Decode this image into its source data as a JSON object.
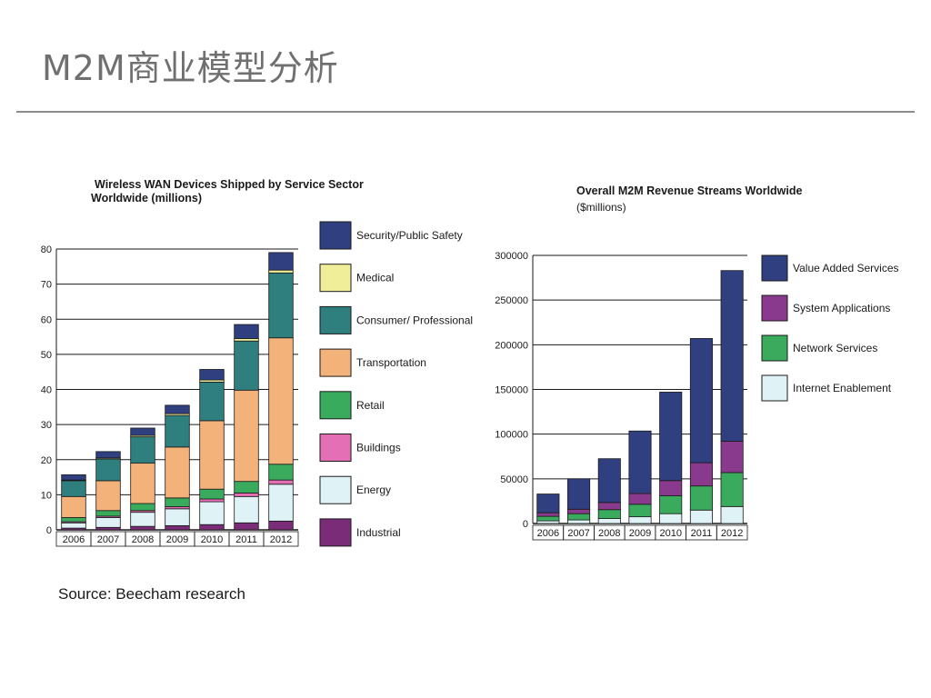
{
  "slide": {
    "title": "M2M商业模型分析",
    "source": "Source: Beecham research"
  },
  "chart_data": [
    {
      "type": "bar",
      "stacked": true,
      "title": "Wireless WAN Devices Shipped by Service Sector Worldwide (millions)",
      "title_lines": [
        "Wireless WAN Devices Shipped by Service Sector",
        "Worldwide (millions)"
      ],
      "categories": [
        "2006",
        "2007",
        "2008",
        "2009",
        "2010",
        "2011",
        "2012"
      ],
      "ylim": [
        0,
        80
      ],
      "yticks": [
        0,
        10,
        20,
        30,
        40,
        50,
        60,
        70,
        80
      ],
      "grid": true,
      "legend_position": "right",
      "series": [
        {
          "name": "Industrial",
          "color": "#7a2c78",
          "values": [
            0.5,
            0.7,
            1.0,
            1.2,
            1.5,
            2.0,
            2.5
          ]
        },
        {
          "name": "Energy",
          "color": "#dff3f6",
          "values": [
            1.5,
            2.8,
            4.0,
            4.8,
            6.5,
            7.5,
            10.5
          ]
        },
        {
          "name": "Buildings",
          "color": "#e56fb5",
          "values": [
            0.3,
            0.4,
            0.5,
            0.6,
            0.8,
            1.0,
            1.2
          ]
        },
        {
          "name": "Retail",
          "color": "#3aaa5c",
          "values": [
            1.2,
            1.6,
            2.0,
            2.5,
            2.8,
            3.3,
            4.5
          ]
        },
        {
          "name": "Transportation",
          "color": "#f3b27a",
          "values": [
            6.0,
            8.5,
            11.5,
            14.5,
            19.5,
            26.0,
            36.0
          ]
        },
        {
          "name": "Consumer/ Professional",
          "color": "#2f7f7f",
          "values": [
            4.5,
            6.2,
            7.5,
            9.0,
            11.0,
            14.0,
            18.5
          ]
        },
        {
          "name": "Medical",
          "color": "#f1ee9a",
          "values": [
            0.2,
            0.3,
            0.4,
            0.5,
            0.6,
            0.7,
            0.8
          ]
        },
        {
          "name": "Security/Public Safety",
          "color": "#2f3f7f",
          "values": [
            1.5,
            1.8,
            2.1,
            2.4,
            3.0,
            4.0,
            5.0
          ]
        }
      ],
      "legend_order": [
        "Security/Public Safety",
        "Medical",
        "Consumer/ Professional",
        "Transportation",
        "Retail",
        "Buildings",
        "Energy",
        "Industrial"
      ]
    },
    {
      "type": "bar",
      "stacked": true,
      "title": "Overall M2M Revenue Streams Worldwide",
      "subtitle": "($millions)",
      "categories": [
        "2006",
        "2007",
        "2008",
        "2009",
        "2010",
        "2011",
        "2012"
      ],
      "ylim": [
        0,
        300000
      ],
      "yticks": [
        0,
        50000,
        100000,
        150000,
        200000,
        250000,
        300000
      ],
      "grid": true,
      "legend_position": "right",
      "series": [
        {
          "name": "Internet Enablement",
          "color": "#dff3f6",
          "values": [
            3000,
            4000,
            5500,
            7500,
            11000,
            15000,
            19000
          ]
        },
        {
          "name": "Network Services",
          "color": "#3aaa5c",
          "values": [
            5000,
            7000,
            10000,
            14000,
            20000,
            27000,
            38000
          ]
        },
        {
          "name": "System Applications",
          "color": "#8a3a8c",
          "values": [
            4000,
            5000,
            8000,
            12000,
            17000,
            26000,
            35000
          ]
        },
        {
          "name": "Value Added Services",
          "color": "#2f3f7f",
          "values": [
            21000,
            34000,
            49000,
            70000,
            99000,
            139000,
            191000
          ]
        }
      ],
      "legend_order": [
        "Value Added Services",
        "System Applications",
        "Network Services",
        "Internet Enablement"
      ]
    }
  ]
}
